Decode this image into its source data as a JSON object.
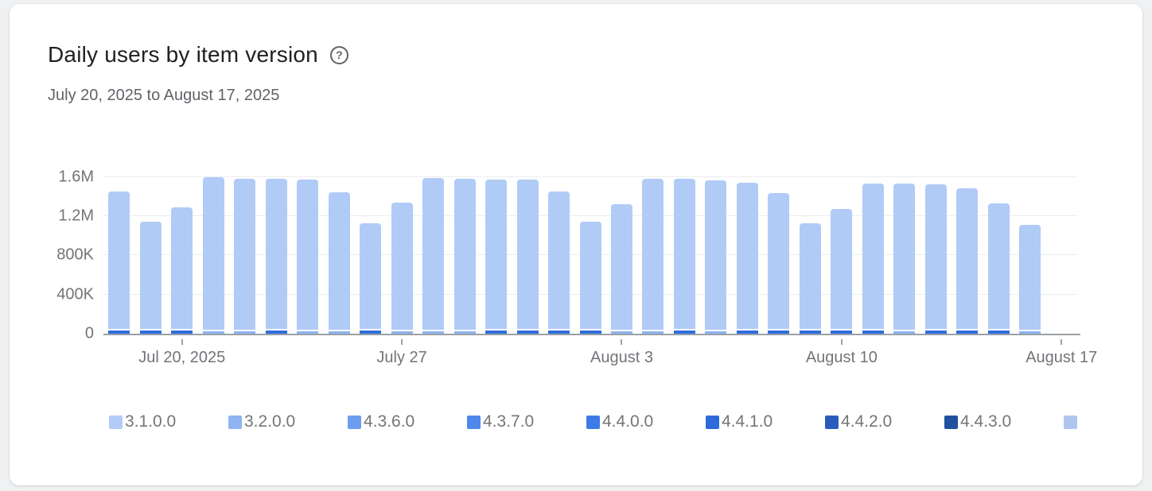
{
  "card": {
    "title": "Daily users by item version",
    "help_icon": "?",
    "date_range": "July 20, 2025 to August 17, 2025"
  },
  "chart_data": {
    "type": "bar",
    "stacked": true,
    "title": "Daily users by item version",
    "date_range": "July 20, 2025 to August 17, 2025",
    "unit": "users",
    "grid": true,
    "ylim": [
      0,
      1700000
    ],
    "yticks": [
      {
        "label": "0",
        "value": 0
      },
      {
        "label": "400K",
        "value": 400000
      },
      {
        "label": "800K",
        "value": 800000
      },
      {
        "label": "1.2M",
        "value": 1200000
      },
      {
        "label": "1.6M",
        "value": 1600000
      }
    ],
    "x_slot_count": 31,
    "xticks": [
      {
        "label": "Jul 20, 2025",
        "slot": 2
      },
      {
        "label": "July 27",
        "slot": 9
      },
      {
        "label": "August 3",
        "slot": 16
      },
      {
        "label": "August 10",
        "slot": 23
      },
      {
        "label": "August 17",
        "slot": 30
      }
    ],
    "colors": {
      "bar_body": "#b1cbf7",
      "sliver_dark": "#2f6edd",
      "sliver_light": "#8db4f0"
    },
    "sliver_values": {
      "dark": 35000,
      "light": 22000
    },
    "bars": [
      {
        "date": "Jul 18",
        "total": 1450000,
        "sliver": "dark"
      },
      {
        "date": "Jul 19",
        "total": 1140000,
        "sliver": "dark"
      },
      {
        "date": "Jul 20",
        "total": 1290000,
        "sliver": "dark"
      },
      {
        "date": "Jul 21",
        "total": 1600000,
        "sliver": "light"
      },
      {
        "date": "Jul 22",
        "total": 1580000,
        "sliver": "light"
      },
      {
        "date": "Jul 23",
        "total": 1580000,
        "sliver": "dark"
      },
      {
        "date": "Jul 24",
        "total": 1570000,
        "sliver": "light"
      },
      {
        "date": "Jul 25",
        "total": 1440000,
        "sliver": "light"
      },
      {
        "date": "Jul 26",
        "total": 1130000,
        "sliver": "dark"
      },
      {
        "date": "Jul 27",
        "total": 1340000,
        "sliver": "light"
      },
      {
        "date": "Jul 28",
        "total": 1590000,
        "sliver": "light"
      },
      {
        "date": "Jul 29",
        "total": 1580000,
        "sliver": "light"
      },
      {
        "date": "Jul 30",
        "total": 1570000,
        "sliver": "dark"
      },
      {
        "date": "Jul 31",
        "total": 1570000,
        "sliver": "dark"
      },
      {
        "date": "Aug 1",
        "total": 1450000,
        "sliver": "dark"
      },
      {
        "date": "Aug 2",
        "total": 1140000,
        "sliver": "dark"
      },
      {
        "date": "Aug 3",
        "total": 1320000,
        "sliver": "light"
      },
      {
        "date": "Aug 4",
        "total": 1580000,
        "sliver": "light"
      },
      {
        "date": "Aug 5",
        "total": 1580000,
        "sliver": "dark"
      },
      {
        "date": "Aug 6",
        "total": 1560000,
        "sliver": "light"
      },
      {
        "date": "Aug 7",
        "total": 1540000,
        "sliver": "dark"
      },
      {
        "date": "Aug 8",
        "total": 1430000,
        "sliver": "dark"
      },
      {
        "date": "Aug 9",
        "total": 1130000,
        "sliver": "dark"
      },
      {
        "date": "Aug 10",
        "total": 1270000,
        "sliver": "dark"
      },
      {
        "date": "Aug 11",
        "total": 1530000,
        "sliver": "dark"
      },
      {
        "date": "Aug 12",
        "total": 1530000,
        "sliver": "light"
      },
      {
        "date": "Aug 13",
        "total": 1520000,
        "sliver": "dark"
      },
      {
        "date": "Aug 14",
        "total": 1480000,
        "sliver": "dark"
      },
      {
        "date": "Aug 15",
        "total": 1330000,
        "sliver": "dark"
      },
      {
        "date": "Aug 16",
        "total": 1110000,
        "sliver": "light"
      }
    ],
    "legend": [
      {
        "label": "3.1.0.0",
        "color": "#b3cbf7"
      },
      {
        "label": "3.2.0.0",
        "color": "#8fb4f1"
      },
      {
        "label": "4.3.6.0",
        "color": "#6d9eee"
      },
      {
        "label": "4.3.7.0",
        "color": "#4d88ea"
      },
      {
        "label": "4.4.0.0",
        "color": "#3d7ce8"
      },
      {
        "label": "4.4.1.0",
        "color": "#2e6ad8"
      },
      {
        "label": "4.4.2.0",
        "color": "#2a5cbd"
      },
      {
        "label": "4.4.3.0",
        "color": "#21509f"
      },
      {
        "label": "",
        "color": "#b0c6f1"
      }
    ],
    "legend_position": "bottom"
  }
}
